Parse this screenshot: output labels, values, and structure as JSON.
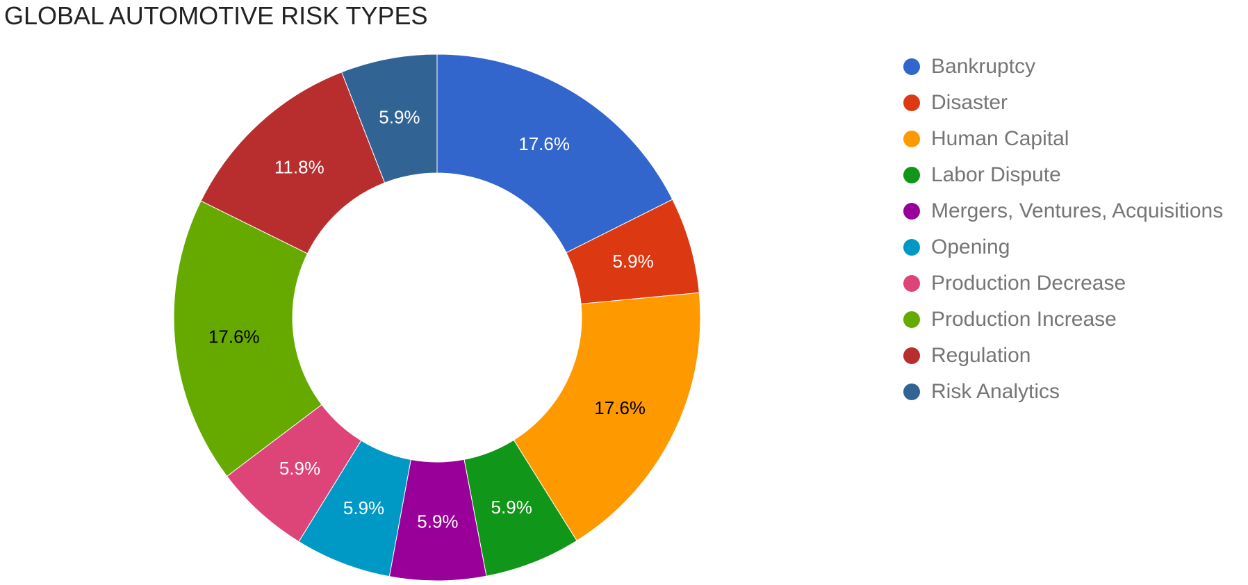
{
  "chart_data": {
    "type": "pie",
    "variant": "donut",
    "title": "GLOBAL AUTOMOTIVE RISK TYPES",
    "legend_position": "right",
    "series": [
      {
        "name": "Bankruptcy",
        "value": 17.6,
        "label": "17.6%",
        "color": "#3366cc",
        "label_color": "#ffffff"
      },
      {
        "name": "Disaster",
        "value": 5.9,
        "label": "5.9%",
        "color": "#dc3912",
        "label_color": "#ffffff"
      },
      {
        "name": "Human Capital",
        "value": 17.6,
        "label": "17.6%",
        "color": "#ff9900",
        "label_color": "#000000"
      },
      {
        "name": "Labor Dispute",
        "value": 5.9,
        "label": "5.9%",
        "color": "#109618",
        "label_color": "#ffffff"
      },
      {
        "name": "Mergers, Ventures, Acquisitions",
        "value": 5.9,
        "label": "5.9%",
        "color": "#990099",
        "label_color": "#ffffff"
      },
      {
        "name": "Opening",
        "value": 5.9,
        "label": "5.9%",
        "color": "#0099c6",
        "label_color": "#ffffff"
      },
      {
        "name": "Production Decrease",
        "value": 5.9,
        "label": "5.9%",
        "color": "#dd4477",
        "label_color": "#ffffff"
      },
      {
        "name": "Production Increase",
        "value": 17.6,
        "label": "17.6%",
        "color": "#66aa00",
        "label_color": "#000000"
      },
      {
        "name": "Regulation",
        "value": 11.8,
        "label": "11.8%",
        "color": "#b82e2e",
        "label_color": "#ffffff"
      },
      {
        "name": "Risk Analytics",
        "value": 5.9,
        "label": "5.9%",
        "color": "#316395",
        "label_color": "#ffffff"
      }
    ]
  }
}
